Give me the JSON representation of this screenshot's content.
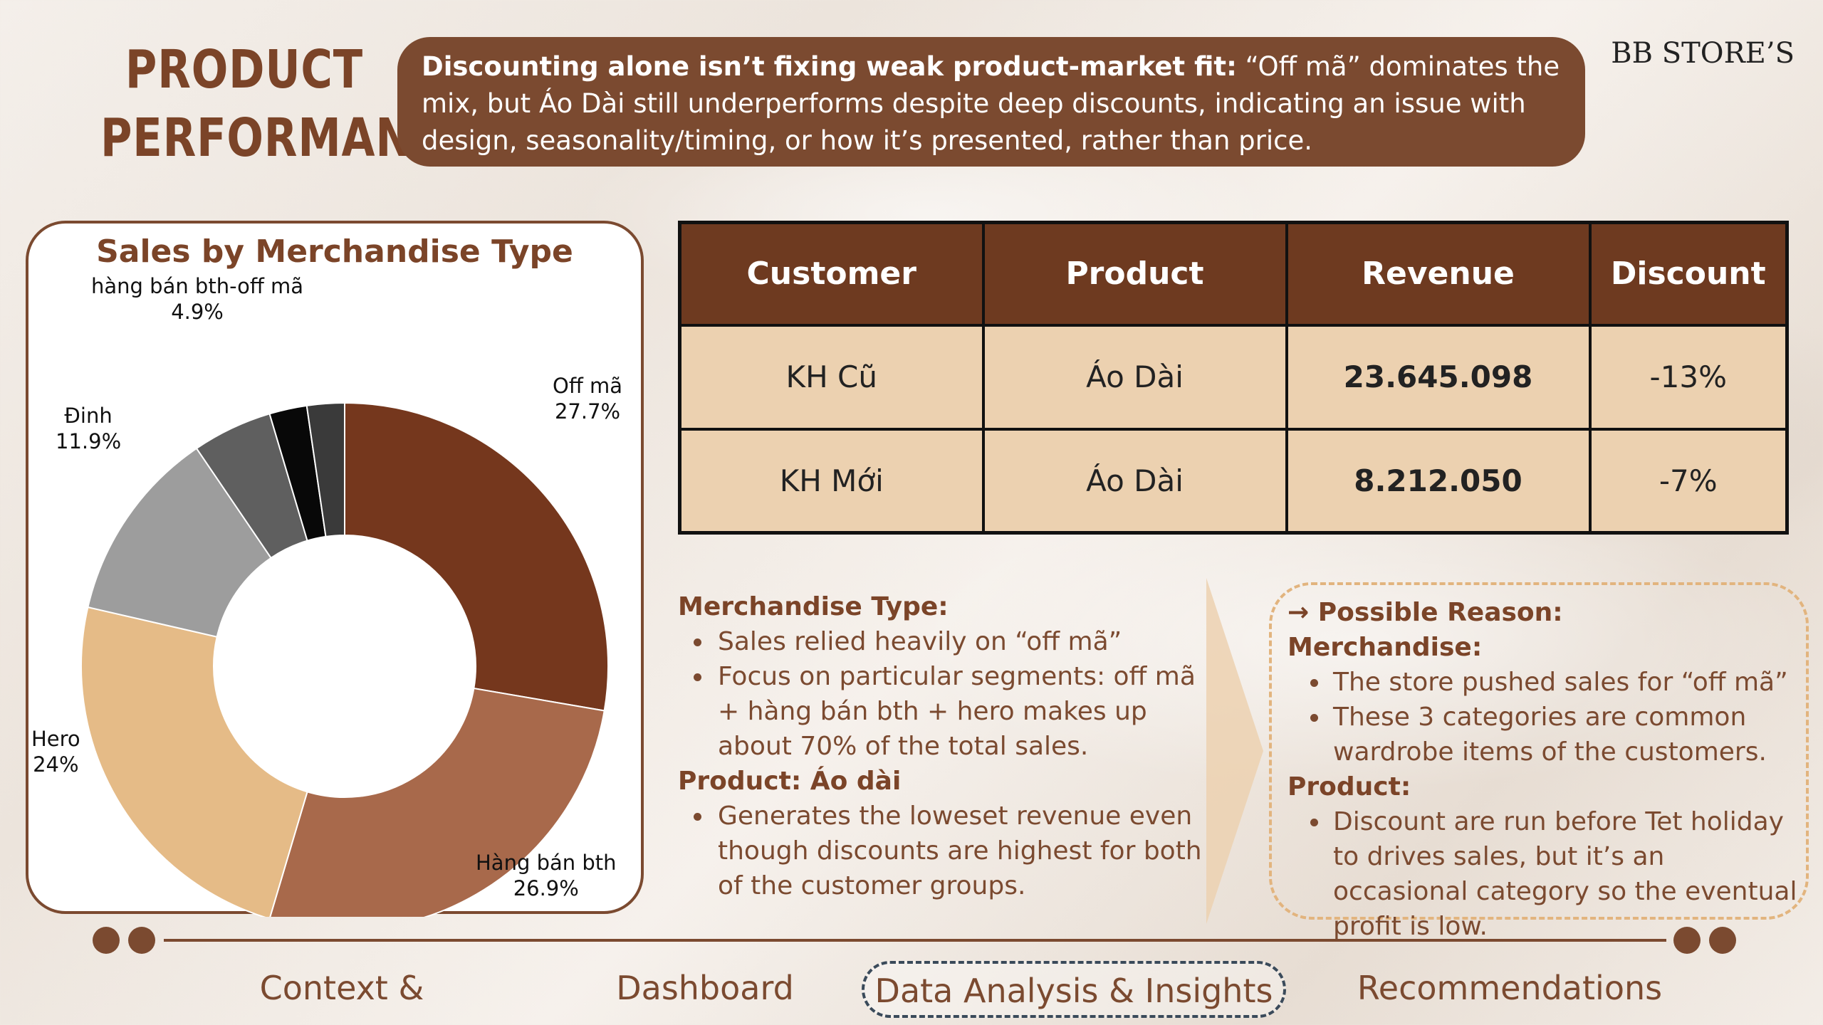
{
  "header": {
    "title_line1": "PRODUCT",
    "title_line2": "PERFORMANCE",
    "brand": "BB STORE’S"
  },
  "insight": {
    "bold": "Discounting alone isn’t fixing weak product-market fit:",
    "text": " “Off mã” dominates the mix, but Áo Dài still underperforms despite deep discounts, indicating an issue with design, seasonality/timing, or how it’s presented, rather than price."
  },
  "chart_data": {
    "type": "pie",
    "title": "Sales by Merchandise Type",
    "donut": true,
    "slices": [
      {
        "label": "Off mã",
        "value": 27.7,
        "value_label": "27.7%",
        "color": "#75371d",
        "show_label": true
      },
      {
        "label": "Hàng bán bth",
        "value": 26.9,
        "value_label": "26.9%",
        "color": "#a8694b",
        "show_label": true
      },
      {
        "label": "Hero",
        "value": 24.0,
        "value_label": "24%",
        "color": "#e5bb87",
        "show_label": true
      },
      {
        "label": "Đinh",
        "value": 11.9,
        "value_label": "11.9%",
        "color": "#9d9d9d",
        "show_label": true
      },
      {
        "label": "hàng bán bth-off mã",
        "value": 4.9,
        "value_label": "4.9%",
        "color": "#5f5f5f",
        "show_label": true
      },
      {
        "label": "",
        "value": 2.3,
        "value_label": "",
        "color": "#080808",
        "show_label": false
      },
      {
        "label": "",
        "value": 2.3,
        "value_label": "",
        "color": "#3a3a3a",
        "show_label": false
      }
    ]
  },
  "table": {
    "headers": [
      "Customer",
      "Product",
      "Revenue",
      "Discount"
    ],
    "rows": [
      [
        "KH Cũ",
        "Áo Dài",
        "23.645.098",
        "-13%"
      ],
      [
        "KH Mới",
        "Áo Dài",
        "8.212.050",
        "-7%"
      ]
    ]
  },
  "notes": {
    "merch_head": "Merchandise Type:",
    "merch_items": [
      "Sales relied heavily on “off mã”",
      "Focus on particular segments: off mã + hàng bán bth + hero makes up about 70% of the total sales."
    ],
    "product_head": "Product: Áo dài",
    "product_items": [
      "Generates the loweset revenue even though discounts are highest for both of the customer groups."
    ]
  },
  "reason": {
    "head": "→ Possible Reason:",
    "merch_head": "Merchandise:",
    "merch_items": [
      "The store pushed sales for “off mã”",
      " These 3 categories are common wardrobe items of the customers."
    ],
    "product_head": "Product:",
    "product_items": [
      "Discount are run before Tet holiday to drives sales, but it’s an occasional category so the eventual profit is low."
    ]
  },
  "nav": {
    "items": [
      "Context & Objectives",
      "Dashboard",
      "Data Analysis & Insights",
      "Recommendations"
    ],
    "active_index": 2
  },
  "colors": {
    "brown": "#7b4a30",
    "dark_brown": "#6e3a20",
    "tan": "#ecd1b0",
    "dashed_tan": "#e2b47e"
  }
}
